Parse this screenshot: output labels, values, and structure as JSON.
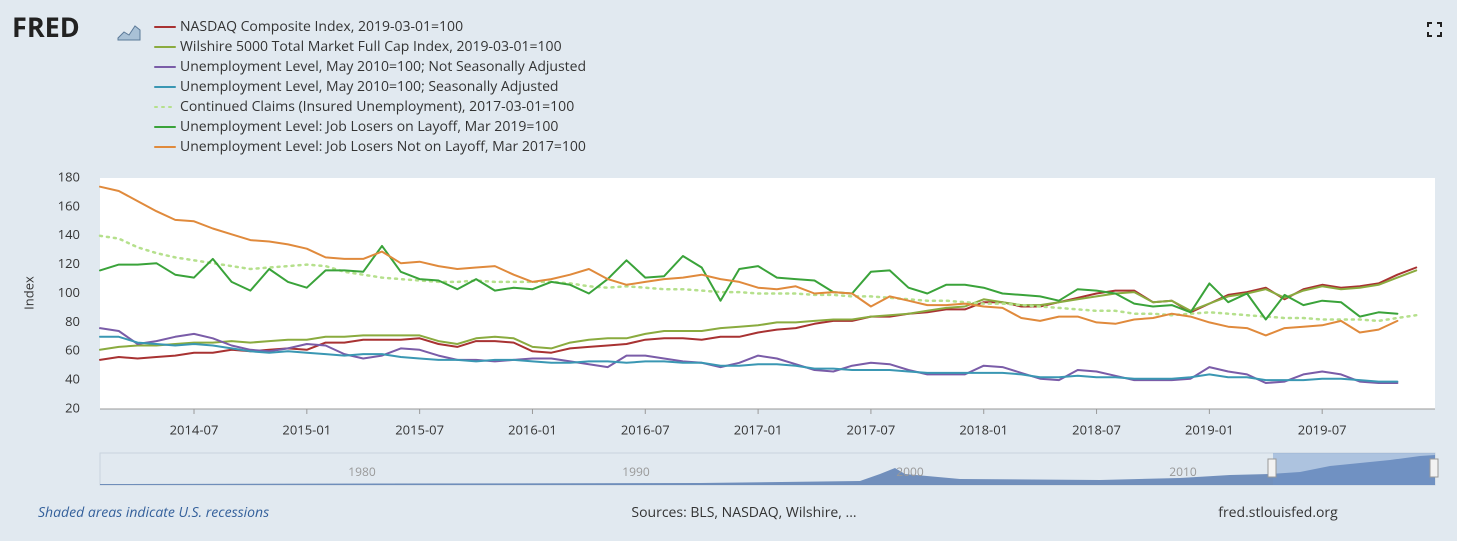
{
  "logo": "FRED",
  "chart_data": {
    "type": "line",
    "y_label": "Index",
    "x": [
      "2014-02",
      "2014-03",
      "2014-04",
      "2014-05",
      "2014-06",
      "2014-07",
      "2014-08",
      "2014-09",
      "2014-10",
      "2014-11",
      "2014-12",
      "2015-01",
      "2015-02",
      "2015-03",
      "2015-04",
      "2015-05",
      "2015-06",
      "2015-07",
      "2015-08",
      "2015-09",
      "2015-10",
      "2015-11",
      "2015-12",
      "2016-01",
      "2016-02",
      "2016-03",
      "2016-04",
      "2016-05",
      "2016-06",
      "2016-07",
      "2016-08",
      "2016-09",
      "2016-10",
      "2016-11",
      "2016-12",
      "2017-01",
      "2017-02",
      "2017-03",
      "2017-04",
      "2017-05",
      "2017-06",
      "2017-07",
      "2017-08",
      "2017-09",
      "2017-10",
      "2017-11",
      "2017-12",
      "2018-01",
      "2018-02",
      "2018-03",
      "2018-04",
      "2018-05",
      "2018-06",
      "2018-07",
      "2018-08",
      "2018-09",
      "2018-10",
      "2018-11",
      "2018-12",
      "2019-01",
      "2019-02",
      "2019-03",
      "2019-04",
      "2019-05",
      "2019-06",
      "2019-07",
      "2019-08",
      "2019-09",
      "2019-10",
      "2019-11",
      "2019-12"
    ],
    "xlim": [
      "2014-02",
      "2020-01"
    ],
    "xticks": [
      "2014-07",
      "2015-01",
      "2015-07",
      "2016-01",
      "2016-07",
      "2017-01",
      "2017-07",
      "2018-01",
      "2018-07",
      "2019-01",
      "2019-07"
    ],
    "ylim": [
      20,
      180
    ],
    "yticks": [
      20,
      40,
      60,
      80,
      100,
      120,
      140,
      160,
      180
    ],
    "grid": false,
    "series": [
      {
        "name": "NASDAQ Composite Index, 2019-03-01=100",
        "color": "#a83232",
        "dash": "solid",
        "values": [
          54,
          56,
          55,
          56,
          57,
          59,
          59,
          61,
          60,
          61,
          62,
          61,
          66,
          66,
          68,
          68,
          68,
          69,
          65,
          63,
          67,
          67,
          66,
          60,
          59,
          62,
          63,
          64,
          65,
          68,
          69,
          69,
          68,
          70,
          70,
          73,
          75,
          76,
          79,
          81,
          81,
          84,
          84,
          86,
          87,
          89,
          89,
          94,
          94,
          91,
          91,
          94,
          97,
          100,
          102,
          102,
          94,
          95,
          87,
          93,
          99,
          101,
          104,
          96,
          103,
          106,
          104,
          105,
          107,
          113,
          118
        ]
      },
      {
        "name": "Wilshire 5000 Total Market Full Cap Index, 2019-03-01=100",
        "color": "#8aab3f",
        "dash": "solid",
        "values": [
          61,
          63,
          64,
          64,
          65,
          66,
          66,
          67,
          66,
          67,
          68,
          68,
          70,
          70,
          71,
          71,
          71,
          71,
          67,
          65,
          69,
          70,
          69,
          63,
          62,
          66,
          68,
          69,
          69,
          72,
          74,
          74,
          74,
          76,
          77,
          78,
          80,
          80,
          81,
          82,
          82,
          84,
          85,
          86,
          88,
          90,
          91,
          96,
          94,
          92,
          92,
          94,
          96,
          98,
          100,
          101,
          94,
          95,
          88,
          93,
          98,
          100,
          103,
          97,
          102,
          105,
          103,
          104,
          106,
          111,
          116
        ]
      },
      {
        "name": "Unemployment Level, May 2010=100; Not Seasonally Adjusted",
        "color": "#7a5ca8",
        "dash": "solid",
        "values": [
          76,
          74,
          65,
          67,
          70,
          72,
          69,
          64,
          61,
          60,
          62,
          65,
          64,
          58,
          55,
          57,
          62,
          61,
          57,
          54,
          54,
          53,
          54,
          55,
          55,
          53,
          51,
          49,
          57,
          57,
          55,
          53,
          52,
          49,
          52,
          57,
          55,
          51,
          47,
          46,
          50,
          52,
          51,
          47,
          44,
          44,
          44,
          50,
          49,
          45,
          41,
          40,
          47,
          46,
          43,
          40,
          40,
          40,
          41,
          49,
          46,
          44,
          38,
          39,
          44,
          46,
          44,
          39,
          38,
          38,
          null
        ]
      },
      {
        "name": "Unemployment Level, May 2010=100; Seasonally Adjusted",
        "color": "#3a97b3",
        "dash": "solid",
        "values": [
          70,
          70,
          66,
          65,
          64,
          65,
          64,
          62,
          60,
          59,
          60,
          59,
          58,
          57,
          58,
          58,
          56,
          55,
          54,
          54,
          53,
          54,
          54,
          53,
          52,
          52,
          53,
          53,
          52,
          53,
          53,
          52,
          52,
          50,
          50,
          51,
          51,
          50,
          48,
          48,
          47,
          47,
          47,
          46,
          45,
          45,
          45,
          45,
          45,
          44,
          42,
          42,
          43,
          42,
          42,
          41,
          41,
          41,
          42,
          44,
          42,
          42,
          40,
          40,
          40,
          41,
          41,
          40,
          39,
          39,
          null
        ]
      },
      {
        "name": "Continued Claims (Insured Unemployment), 2017-03-01=100",
        "color": "#b5e08c",
        "dash": "dotted",
        "values": [
          140,
          138,
          132,
          128,
          125,
          123,
          121,
          119,
          117,
          118,
          119,
          120,
          119,
          115,
          113,
          111,
          110,
          109,
          108,
          108,
          109,
          108,
          108,
          108,
          108,
          107,
          105,
          104,
          105,
          104,
          103,
          103,
          102,
          101,
          101,
          100,
          100,
          100,
          99,
          99,
          98,
          98,
          97,
          96,
          95,
          95,
          94,
          93,
          93,
          92,
          91,
          90,
          89,
          88,
          88,
          86,
          86,
          85,
          86,
          87,
          86,
          85,
          84,
          83,
          83,
          82,
          82,
          82,
          81,
          83,
          85
        ]
      },
      {
        "name": "Unemployment Level: Job Losers on Layoff, Mar 2019=100",
        "color": "#3aa33a",
        "dash": "solid",
        "values": [
          116,
          120,
          120,
          121,
          113,
          111,
          124,
          108,
          102,
          117,
          108,
          104,
          116,
          116,
          115,
          133,
          115,
          110,
          109,
          103,
          110,
          102,
          104,
          103,
          108,
          106,
          100,
          110,
          123,
          111,
          112,
          126,
          118,
          95,
          117,
          119,
          111,
          110,
          109,
          101,
          100,
          115,
          116,
          104,
          100,
          106,
          106,
          104,
          100,
          99,
          98,
          95,
          103,
          102,
          100,
          93,
          91,
          92,
          87,
          107,
          94,
          100,
          82,
          99,
          92,
          95,
          94,
          84,
          87,
          86,
          null
        ]
      },
      {
        "name": "Unemployment Level: Job Losers Not on Layoff, Mar 2017=100",
        "color": "#e08a3c",
        "dash": "solid",
        "values": [
          174,
          171,
          164,
          157,
          151,
          150,
          145,
          141,
          137,
          136,
          134,
          131,
          125,
          124,
          124,
          129,
          121,
          122,
          119,
          117,
          118,
          119,
          113,
          108,
          110,
          113,
          117,
          110,
          106,
          108,
          110,
          111,
          113,
          110,
          108,
          104,
          103,
          105,
          100,
          101,
          100,
          91,
          98,
          95,
          92,
          92,
          93,
          91,
          90,
          83,
          81,
          84,
          84,
          80,
          79,
          82,
          83,
          86,
          84,
          80,
          77,
          76,
          71,
          76,
          77,
          78,
          81,
          73,
          75,
          81,
          null
        ]
      }
    ]
  },
  "navigator": {
    "labels": [
      "1980",
      "1990",
      "2000",
      "2010"
    ]
  },
  "footer": {
    "note": "Shaded areas indicate U.S. recessions",
    "sources": "Sources: BLS, NASDAQ, Wilshire, ...",
    "site": "fred.stlouisfed.org"
  }
}
